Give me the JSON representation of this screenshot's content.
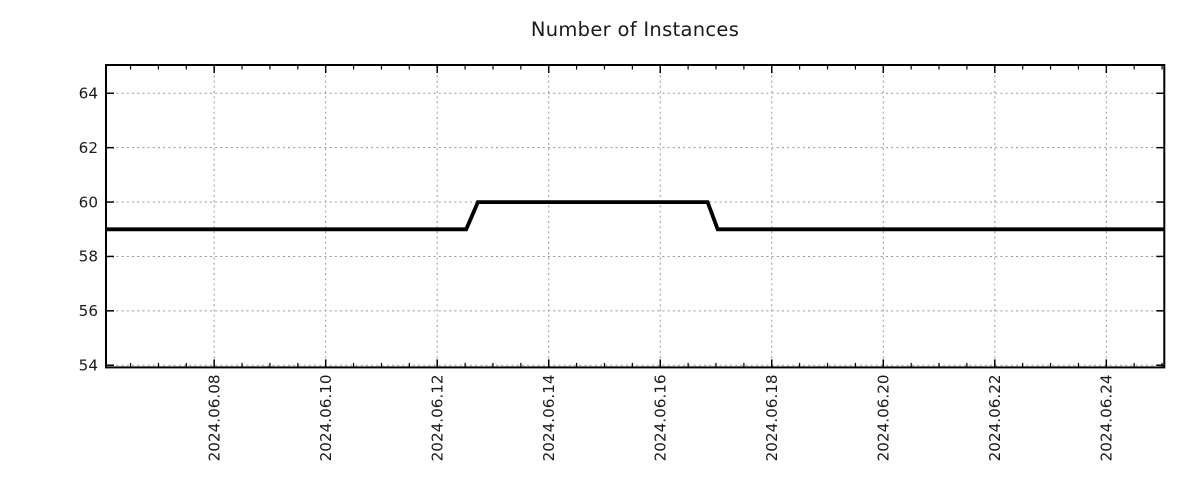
{
  "chart_data": {
    "type": "line",
    "title": "Number of Instances",
    "xlabel": "",
    "ylabel": "",
    "legend": "none",
    "grid": "dotted major gridlines, both axes",
    "x_axis": {
      "unit": "date, June 2024 (day-of-month fractional)",
      "xlim_days": [
        6.06,
        25.04
      ],
      "major_tick_days": [
        8,
        10,
        12,
        14,
        16,
        18,
        20,
        22,
        24
      ],
      "major_tick_labels": [
        "2024.06.08",
        "2024.06.10",
        "2024.06.12",
        "2024.06.14",
        "2024.06.16",
        "2024.06.18",
        "2024.06.20",
        "2024.06.22",
        "2024.06.24"
      ],
      "minor_tick_step_days": 0.5,
      "label_rotation_deg": -90
    },
    "y_axis": {
      "ylim": [
        53.92,
        65.04
      ],
      "major_ticks": [
        54,
        56,
        58,
        60,
        62,
        64
      ],
      "major_tick_labels": [
        "54",
        "56",
        "58",
        "60",
        "62",
        "64"
      ]
    },
    "series": [
      {
        "name": "instances",
        "color": "#000000",
        "stroke_width": 3.8,
        "points_day_value": [
          [
            6.06,
            59
          ],
          [
            12.52,
            59
          ],
          [
            12.73,
            60
          ],
          [
            16.85,
            60
          ],
          [
            17.03,
            59
          ],
          [
            25.04,
            59
          ]
        ]
      }
    ],
    "colors": {
      "background": "#ffffff",
      "border": "#000000",
      "grid": "#989898",
      "tick": "#000000",
      "text": "#1a1a1a",
      "line": "#000000"
    }
  }
}
